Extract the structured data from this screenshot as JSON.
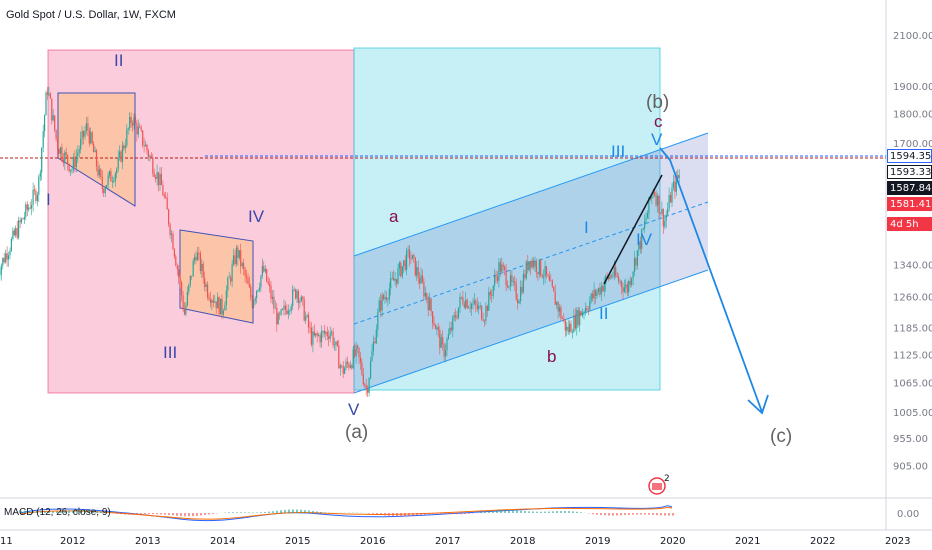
{
  "header": {
    "title": "Gold Spot / U.S. Dollar, 1W, FXCM"
  },
  "indicator": {
    "label": "MACD (12, 26, close, 9)"
  },
  "price_tags": [
    {
      "value": "1594.35",
      "bg": "#ffffff",
      "color": "#131722",
      "border": "#2962ff"
    },
    {
      "value": "1593.33",
      "bg": "#ffffff",
      "color": "#131722",
      "border": "#131722"
    },
    {
      "value": "1587.84",
      "bg": "#131722",
      "color": "#ffffff",
      "border": "#131722"
    },
    {
      "value": "1581.41",
      "bg": "#f23645",
      "color": "#ffffff",
      "border": "#f23645"
    },
    {
      "value": "4d 5h",
      "bg": "#f23645",
      "color": "#ffffff",
      "border": "#f23645"
    }
  ],
  "event_badge": {
    "count": "2"
  },
  "chart_data": {
    "type": "candlestick",
    "symbol": "Gold Spot / U.S. Dollar",
    "timeframe": "1W",
    "source": "FXCM",
    "x_ticks": [
      "11",
      "2012",
      "2013",
      "2014",
      "2015",
      "2016",
      "2017",
      "2018",
      "2019",
      "2020",
      "2021",
      "2022",
      "2023"
    ],
    "y_ticks": [
      "2100.00",
      "1900.00",
      "1800.00",
      "1700.00",
      "1594.35",
      "1593.33",
      "1587.84",
      "1581.41",
      "1340.00",
      "1260.00",
      "1185.00",
      "1125.00",
      "1065.00",
      "1005.00",
      "955.00",
      "905.00"
    ],
    "y_scale": "log",
    "macd_y_ticks": [
      "0.00"
    ],
    "price_path": [
      [
        2011.0,
        1320
      ],
      [
        2011.3,
        1450
      ],
      [
        2011.55,
        1560
      ],
      [
        2011.67,
        1900
      ],
      [
        2011.8,
        1700
      ],
      [
        2012.0,
        1620
      ],
      [
        2012.2,
        1760
      ],
      [
        2012.4,
        1560
      ],
      [
        2012.6,
        1620
      ],
      [
        2012.8,
        1790
      ],
      [
        2013.0,
        1680
      ],
      [
        2013.2,
        1560
      ],
      [
        2013.35,
        1400
      ],
      [
        2013.5,
        1220
      ],
      [
        2013.65,
        1380
      ],
      [
        2013.8,
        1280
      ],
      [
        2014.0,
        1230
      ],
      [
        2014.2,
        1380
      ],
      [
        2014.4,
        1250
      ],
      [
        2014.55,
        1330
      ],
      [
        2014.75,
        1200
      ],
      [
        2015.0,
        1280
      ],
      [
        2015.2,
        1160
      ],
      [
        2015.45,
        1180
      ],
      [
        2015.6,
        1090
      ],
      [
        2015.8,
        1130
      ],
      [
        2015.93,
        1050
      ],
      [
        2016.1,
        1240
      ],
      [
        2016.5,
        1370
      ],
      [
        2016.75,
        1250
      ],
      [
        2016.95,
        1130
      ],
      [
        2017.2,
        1260
      ],
      [
        2017.5,
        1220
      ],
      [
        2017.7,
        1340
      ],
      [
        2017.95,
        1260
      ],
      [
        2018.1,
        1360
      ],
      [
        2018.3,
        1320
      ],
      [
        2018.6,
        1180
      ],
      [
        2018.9,
        1250
      ],
      [
        2019.2,
        1320
      ],
      [
        2019.4,
        1280
      ],
      [
        2019.6,
        1420
      ],
      [
        2019.75,
        1560
      ],
      [
        2019.9,
        1460
      ],
      [
        2020.0,
        1550
      ],
      [
        2020.1,
        1600
      ]
    ],
    "annotations": {
      "waves_blue": [
        "II",
        "I",
        "III",
        "IV",
        "V",
        "I",
        "II",
        "III",
        "IV",
        "V"
      ],
      "waves_purple": [
        "a",
        "b",
        "c"
      ],
      "waves_gray": [
        "(a)",
        "(b)",
        "(c)"
      ]
    }
  }
}
